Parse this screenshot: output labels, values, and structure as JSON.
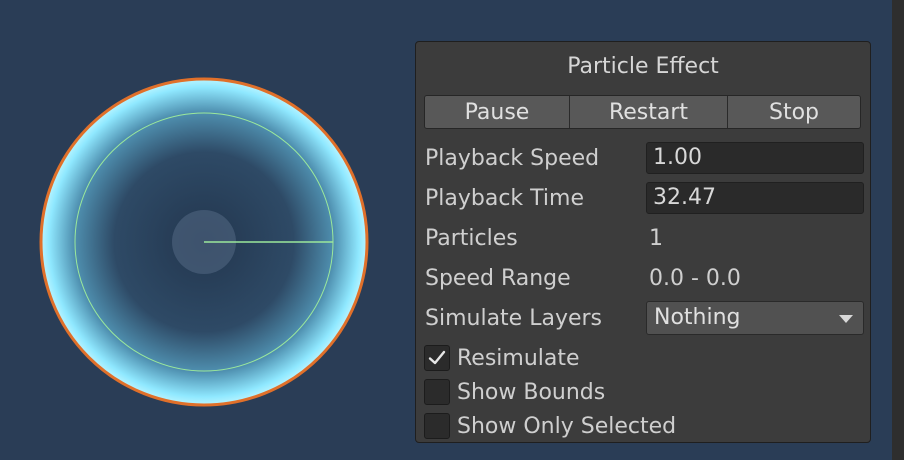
{
  "panel": {
    "title": "Particle Effect",
    "buttons": {
      "pause": "Pause",
      "restart": "Restart",
      "stop": "Stop"
    },
    "rows": {
      "playback_speed": {
        "label": "Playback Speed",
        "value": "1.00"
      },
      "playback_time": {
        "label": "Playback Time",
        "value": "32.47"
      },
      "particles": {
        "label": "Particles",
        "value": "1"
      },
      "speed_range": {
        "label": "Speed Range",
        "value": "0.0 - 0.0"
      },
      "simulate_layers": {
        "label": "Simulate Layers",
        "value": "Nothing"
      }
    },
    "checkboxes": [
      {
        "label": "Resimulate",
        "checked": true
      },
      {
        "label": "Show Bounds",
        "checked": false
      },
      {
        "label": "Show Only Selected",
        "checked": false
      }
    ]
  },
  "colors": {
    "viewport_bg": "#2a3d56",
    "particle_glow": "#7fe6ff",
    "selection_outline": "#e0702a",
    "gizmo": "#9be89b"
  }
}
